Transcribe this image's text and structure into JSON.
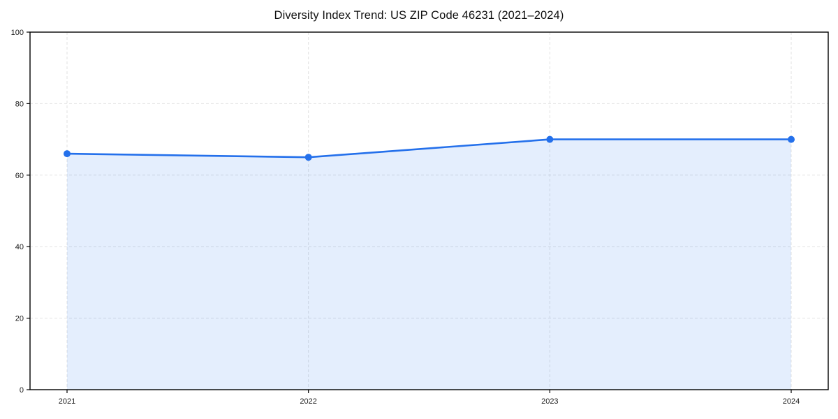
{
  "chart_data": {
    "type": "area",
    "title": "Diversity Index Trend: US ZIP Code 46231 (2021–2024)",
    "x": [
      2021,
      2022,
      2023,
      2024
    ],
    "series": [
      {
        "name": "Diversity Index",
        "values": [
          66,
          65,
          70,
          70
        ]
      }
    ],
    "xlabel": "",
    "ylabel": "",
    "ylim": [
      0,
      100
    ],
    "yticks": [
      0,
      20,
      40,
      60,
      80,
      100
    ],
    "xticks": [
      "2021",
      "2022",
      "2023",
      "2024"
    ],
    "grid": "dashed-both",
    "legend": "none",
    "colors": {
      "line": "#2470eb",
      "marker": "#2470eb",
      "fill": "rgba(36, 112, 235, 0.12)",
      "grid": "#e2e2e2",
      "spine": "#000000",
      "tick_label": "#1a1a1a",
      "background": "#ffffff"
    }
  }
}
